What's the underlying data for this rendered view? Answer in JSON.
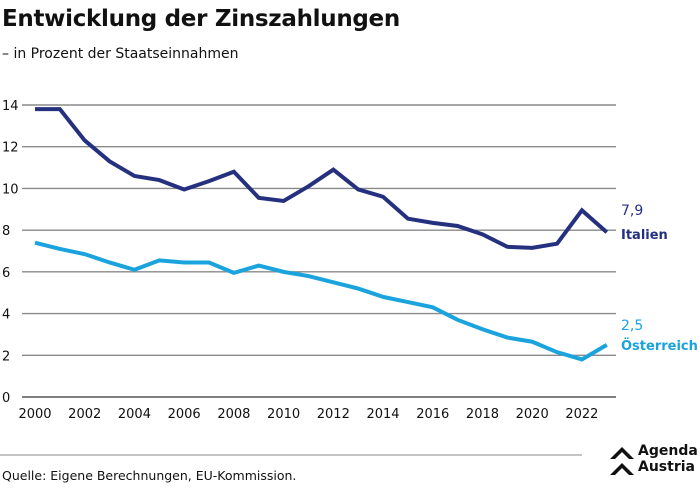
{
  "chart_data": {
    "type": "line",
    "title": "Entwicklung der Zinszahlungen",
    "subtitle": "– in Prozent der Staatseinnahmen",
    "x": [
      2000,
      2001,
      2002,
      2003,
      2004,
      2005,
      2006,
      2007,
      2008,
      2009,
      2010,
      2011,
      2012,
      2013,
      2014,
      2015,
      2016,
      2017,
      2018,
      2019,
      2020,
      2021,
      2022,
      2023
    ],
    "x_ticks": [
      "2000",
      "2002",
      "2004",
      "2006",
      "2008",
      "2010",
      "2012",
      "2014",
      "2016",
      "2018",
      "2020",
      "2022"
    ],
    "y_ticks": [
      "0",
      "2",
      "4",
      "6",
      "8",
      "10",
      "12",
      "14"
    ],
    "ylim": [
      0,
      14
    ],
    "grid": true,
    "series": [
      {
        "name": "Italien",
        "end_label": "7,9",
        "color": "#25307f",
        "values": [
          13.8,
          13.8,
          12.3,
          11.3,
          10.6,
          10.4,
          9.95,
          10.35,
          10.8,
          9.55,
          9.4,
          10.1,
          10.9,
          9.95,
          9.6,
          8.55,
          8.35,
          8.2,
          7.8,
          7.2,
          7.15,
          7.35,
          8.95,
          7.9
        ]
      },
      {
        "name": "Österreich",
        "end_label": "2,5",
        "color": "#1aa3dc",
        "values": [
          7.4,
          7.1,
          6.85,
          6.45,
          6.1,
          6.55,
          6.45,
          6.45,
          5.95,
          6.3,
          6.0,
          5.8,
          5.5,
          5.2,
          4.8,
          4.55,
          4.3,
          3.7,
          3.25,
          2.85,
          2.65,
          2.15,
          1.8,
          2.5
        ]
      }
    ]
  },
  "footer": {
    "source": "Quelle: Eigene Berechnungen, EU-Kommission.",
    "logo_line1": "Agenda",
    "logo_line2": "Austria"
  }
}
